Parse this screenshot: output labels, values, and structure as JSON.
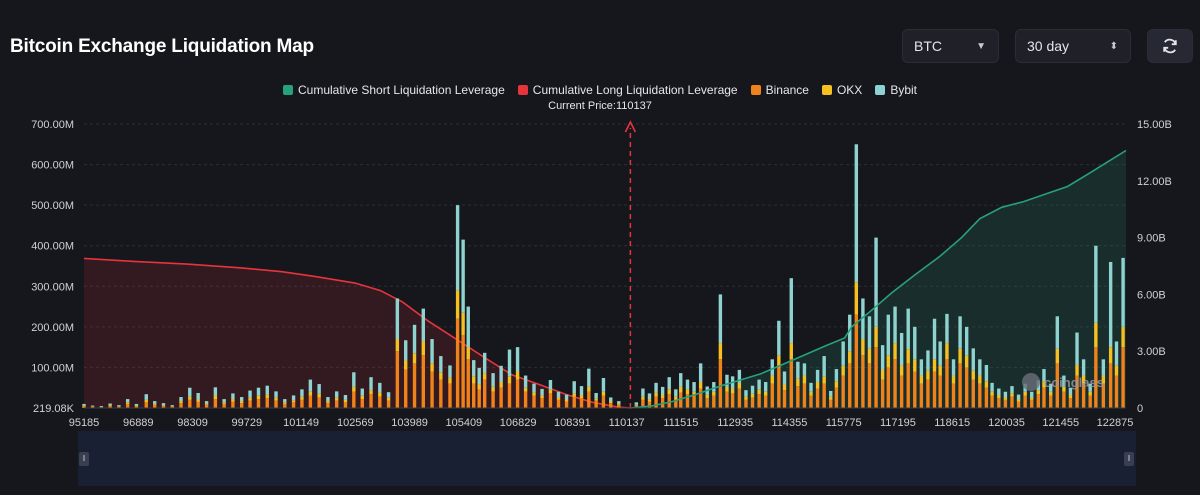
{
  "title": "Bitcoin Exchange Liquidation Map",
  "controls": {
    "symbol": "BTC",
    "period": "30 day",
    "symbol_icon": "chevron-down-icon",
    "period_icon": "up-down-chevron-icon",
    "refresh_icon": "refresh-icon"
  },
  "legend": [
    {
      "label": "Cumulative Short Liquidation Leverage",
      "color": "#26a17b"
    },
    {
      "label": "Cumulative Long Liquidation Leverage",
      "color": "#e5343c"
    },
    {
      "label": "Binance",
      "color": "#f0821a"
    },
    {
      "label": "OKX",
      "color": "#f5c020"
    },
    {
      "label": "Bybit",
      "color": "#8fd3d0"
    }
  ],
  "current_price_text": "Current Price:110137",
  "watermark": "coinglass",
  "chart_data": {
    "type": "bar",
    "current_price": 110137,
    "x_range": [
      95185,
      123700
    ],
    "x_ticks": [
      "95185",
      "96889",
      "98309",
      "99729",
      "101149",
      "102569",
      "103989",
      "105409",
      "106829",
      "108391",
      "110137",
      "111515",
      "112935",
      "114355",
      "115775",
      "117195",
      "118615",
      "120035",
      "121455",
      "122875"
    ],
    "y_left": {
      "ticks": [
        "219.08K",
        "100.00M",
        "200.00M",
        "300.00M",
        "400.00M",
        "500.00M",
        "600.00M",
        "700.00M"
      ],
      "ylim": [
        0,
        700
      ]
    },
    "y_right": {
      "ticks": [
        "0",
        "3.00B",
        "6.00B",
        "9.00B",
        "12.00B",
        "15.00B"
      ],
      "ylim": [
        0,
        15
      ]
    },
    "stacked_series": [
      {
        "name": "Binance",
        "color": "#f0821a"
      },
      {
        "name": "OKX",
        "color": "#f5c020"
      },
      {
        "name": "Bybit",
        "color": "#8fd3d0"
      }
    ],
    "bars": [
      {
        "x": 95185,
        "b": 4,
        "o": 2,
        "y": 4
      },
      {
        "x": 95420,
        "b": 3,
        "o": 1,
        "y": 2
      },
      {
        "x": 95660,
        "b": 2,
        "o": 1,
        "y": 2
      },
      {
        "x": 95900,
        "b": 5,
        "o": 2,
        "y": 4
      },
      {
        "x": 96140,
        "b": 3,
        "o": 1,
        "y": 3
      },
      {
        "x": 96380,
        "b": 10,
        "o": 4,
        "y": 8
      },
      {
        "x": 96620,
        "b": 4,
        "o": 2,
        "y": 4
      },
      {
        "x": 96889,
        "b": 14,
        "o": 6,
        "y": 14
      },
      {
        "x": 97120,
        "b": 8,
        "o": 3,
        "y": 6
      },
      {
        "x": 97360,
        "b": 5,
        "o": 2,
        "y": 5
      },
      {
        "x": 97600,
        "b": 3,
        "o": 1,
        "y": 3
      },
      {
        "x": 97840,
        "b": 12,
        "o": 5,
        "y": 10
      },
      {
        "x": 98080,
        "b": 20,
        "o": 8,
        "y": 22
      },
      {
        "x": 98309,
        "b": 15,
        "o": 6,
        "y": 16
      },
      {
        "x": 98540,
        "b": 8,
        "o": 3,
        "y": 6
      },
      {
        "x": 98780,
        "b": 22,
        "o": 9,
        "y": 20
      },
      {
        "x": 99020,
        "b": 10,
        "o": 4,
        "y": 8
      },
      {
        "x": 99260,
        "b": 16,
        "o": 6,
        "y": 14
      },
      {
        "x": 99500,
        "b": 12,
        "o": 5,
        "y": 10
      },
      {
        "x": 99729,
        "b": 18,
        "o": 7,
        "y": 18
      },
      {
        "x": 99960,
        "b": 22,
        "o": 8,
        "y": 20
      },
      {
        "x": 100200,
        "b": 24,
        "o": 9,
        "y": 22
      },
      {
        "x": 100440,
        "b": 18,
        "o": 7,
        "y": 16
      },
      {
        "x": 100680,
        "b": 10,
        "o": 4,
        "y": 8
      },
      {
        "x": 100920,
        "b": 14,
        "o": 5,
        "y": 12
      },
      {
        "x": 101149,
        "b": 20,
        "o": 8,
        "y": 18
      },
      {
        "x": 101380,
        "b": 30,
        "o": 10,
        "y": 30
      },
      {
        "x": 101620,
        "b": 26,
        "o": 9,
        "y": 24
      },
      {
        "x": 101860,
        "b": 12,
        "o": 5,
        "y": 10
      },
      {
        "x": 102100,
        "b": 18,
        "o": 7,
        "y": 16
      },
      {
        "x": 102340,
        "b": 14,
        "o": 6,
        "y": 12
      },
      {
        "x": 102569,
        "b": 40,
        "o": 12,
        "y": 36
      },
      {
        "x": 102800,
        "b": 22,
        "o": 8,
        "y": 18
      },
      {
        "x": 103040,
        "b": 34,
        "o": 10,
        "y": 32
      },
      {
        "x": 103280,
        "b": 28,
        "o": 10,
        "y": 24
      },
      {
        "x": 103520,
        "b": 18,
        "o": 7,
        "y": 14
      },
      {
        "x": 103760,
        "b": 140,
        "o": 30,
        "y": 100
      },
      {
        "x": 103989,
        "b": 95,
        "o": 22,
        "y": 50
      },
      {
        "x": 104230,
        "b": 110,
        "o": 25,
        "y": 70
      },
      {
        "x": 104470,
        "b": 130,
        "o": 35,
        "y": 80
      },
      {
        "x": 104710,
        "b": 90,
        "o": 20,
        "y": 60
      },
      {
        "x": 104950,
        "b": 70,
        "o": 18,
        "y": 40
      },
      {
        "x": 105200,
        "b": 60,
        "o": 15,
        "y": 30
      },
      {
        "x": 105409,
        "b": 220,
        "o": 70,
        "y": 210
      },
      {
        "x": 105560,
        "b": 180,
        "o": 55,
        "y": 180
      },
      {
        "x": 105700,
        "b": 120,
        "o": 30,
        "y": 100
      },
      {
        "x": 105850,
        "b": 60,
        "o": 18,
        "y": 40
      },
      {
        "x": 106000,
        "b": 45,
        "o": 14,
        "y": 40
      },
      {
        "x": 106150,
        "b": 70,
        "o": 16,
        "y": 50
      },
      {
        "x": 106380,
        "b": 40,
        "o": 12,
        "y": 34
      },
      {
        "x": 106600,
        "b": 50,
        "o": 14,
        "y": 40
      },
      {
        "x": 106829,
        "b": 60,
        "o": 18,
        "y": 66
      },
      {
        "x": 107050,
        "b": 70,
        "o": 20,
        "y": 60
      },
      {
        "x": 107270,
        "b": 40,
        "o": 10,
        "y": 30
      },
      {
        "x": 107500,
        "b": 30,
        "o": 8,
        "y": 22
      },
      {
        "x": 107720,
        "b": 24,
        "o": 7,
        "y": 16
      },
      {
        "x": 107950,
        "b": 36,
        "o": 9,
        "y": 24
      },
      {
        "x": 108170,
        "b": 20,
        "o": 6,
        "y": 14
      },
      {
        "x": 108391,
        "b": 16,
        "o": 5,
        "y": 12
      },
      {
        "x": 108600,
        "b": 28,
        "o": 8,
        "y": 30
      },
      {
        "x": 108800,
        "b": 24,
        "o": 8,
        "y": 22
      },
      {
        "x": 109000,
        "b": 40,
        "o": 12,
        "y": 45
      },
      {
        "x": 109200,
        "b": 18,
        "o": 5,
        "y": 14
      },
      {
        "x": 109400,
        "b": 30,
        "o": 10,
        "y": 34
      },
      {
        "x": 109600,
        "b": 12,
        "o": 4,
        "y": 10
      },
      {
        "x": 109820,
        "b": 8,
        "o": 3,
        "y": 6
      },
      {
        "x": 110300,
        "b": 6,
        "o": 2,
        "y": 6
      },
      {
        "x": 110480,
        "b": 20,
        "o": 8,
        "y": 20
      },
      {
        "x": 110660,
        "b": 16,
        "o": 6,
        "y": 14
      },
      {
        "x": 110840,
        "b": 28,
        "o": 10,
        "y": 24
      },
      {
        "x": 111020,
        "b": 24,
        "o": 8,
        "y": 20
      },
      {
        "x": 111200,
        "b": 34,
        "o": 12,
        "y": 30
      },
      {
        "x": 111380,
        "b": 20,
        "o": 8,
        "y": 18
      },
      {
        "x": 111515,
        "b": 38,
        "o": 14,
        "y": 34
      },
      {
        "x": 111700,
        "b": 34,
        "o": 12,
        "y": 24
      },
      {
        "x": 111880,
        "b": 30,
        "o": 10,
        "y": 24
      },
      {
        "x": 112060,
        "b": 48,
        "o": 16,
        "y": 46
      },
      {
        "x": 112240,
        "b": 24,
        "o": 9,
        "y": 20
      },
      {
        "x": 112420,
        "b": 30,
        "o": 10,
        "y": 24
      },
      {
        "x": 112600,
        "b": 120,
        "o": 40,
        "y": 120
      },
      {
        "x": 112780,
        "b": 40,
        "o": 12,
        "y": 30
      },
      {
        "x": 112935,
        "b": 36,
        "o": 12,
        "y": 30
      },
      {
        "x": 113120,
        "b": 48,
        "o": 14,
        "y": 32
      },
      {
        "x": 113300,
        "b": 20,
        "o": 8,
        "y": 16
      },
      {
        "x": 113480,
        "b": 26,
        "o": 9,
        "y": 20
      },
      {
        "x": 113660,
        "b": 34,
        "o": 12,
        "y": 24
      },
      {
        "x": 113840,
        "b": 30,
        "o": 10,
        "y": 24
      },
      {
        "x": 114020,
        "b": 60,
        "o": 20,
        "y": 40
      },
      {
        "x": 114200,
        "b": 100,
        "o": 30,
        "y": 85
      },
      {
        "x": 114355,
        "b": 44,
        "o": 14,
        "y": 32
      },
      {
        "x": 114540,
        "b": 120,
        "o": 40,
        "y": 160
      },
      {
        "x": 114720,
        "b": 54,
        "o": 18,
        "y": 42
      },
      {
        "x": 114900,
        "b": 60,
        "o": 20,
        "y": 30
      },
      {
        "x": 115080,
        "b": 30,
        "o": 10,
        "y": 22
      },
      {
        "x": 115260,
        "b": 48,
        "o": 16,
        "y": 30
      },
      {
        "x": 115440,
        "b": 60,
        "o": 18,
        "y": 50
      },
      {
        "x": 115620,
        "b": 20,
        "o": 8,
        "y": 14
      },
      {
        "x": 115775,
        "b": 50,
        "o": 16,
        "y": 30
      },
      {
        "x": 115960,
        "b": 80,
        "o": 24,
        "y": 60
      },
      {
        "x": 116140,
        "b": 110,
        "o": 30,
        "y": 90
      },
      {
        "x": 116320,
        "b": 230,
        "o": 80,
        "y": 340
      },
      {
        "x": 116500,
        "b": 130,
        "o": 40,
        "y": 100
      },
      {
        "x": 116680,
        "b": 110,
        "o": 36,
        "y": 80
      },
      {
        "x": 116860,
        "b": 150,
        "o": 50,
        "y": 220
      },
      {
        "x": 117040,
        "b": 70,
        "o": 25,
        "y": 60
      },
      {
        "x": 117195,
        "b": 100,
        "o": 30,
        "y": 100
      },
      {
        "x": 117380,
        "b": 120,
        "o": 40,
        "y": 90
      },
      {
        "x": 117560,
        "b": 80,
        "o": 25,
        "y": 80
      },
      {
        "x": 117740,
        "b": 110,
        "o": 35,
        "y": 100
      },
      {
        "x": 117920,
        "b": 90,
        "o": 30,
        "y": 80
      },
      {
        "x": 118100,
        "b": 60,
        "o": 20,
        "y": 40
      },
      {
        "x": 118280,
        "b": 70,
        "o": 22,
        "y": 50
      },
      {
        "x": 118460,
        "b": 90,
        "o": 30,
        "y": 100
      },
      {
        "x": 118615,
        "b": 80,
        "o": 24,
        "y": 60
      },
      {
        "x": 118800,
        "b": 120,
        "o": 40,
        "y": 72
      },
      {
        "x": 118980,
        "b": 60,
        "o": 20,
        "y": 40
      },
      {
        "x": 119160,
        "b": 110,
        "o": 36,
        "y": 80
      },
      {
        "x": 119340,
        "b": 100,
        "o": 30,
        "y": 70
      },
      {
        "x": 119520,
        "b": 70,
        "o": 22,
        "y": 55
      },
      {
        "x": 119700,
        "b": 60,
        "o": 20,
        "y": 40
      },
      {
        "x": 119880,
        "b": 50,
        "o": 16,
        "y": 40
      },
      {
        "x": 120035,
        "b": 30,
        "o": 10,
        "y": 22
      },
      {
        "x": 120220,
        "b": 24,
        "o": 8,
        "y": 16
      },
      {
        "x": 120400,
        "b": 20,
        "o": 6,
        "y": 14
      },
      {
        "x": 120580,
        "b": 28,
        "o": 8,
        "y": 18
      },
      {
        "x": 120760,
        "b": 16,
        "o": 5,
        "y": 12
      },
      {
        "x": 120940,
        "b": 30,
        "o": 10,
        "y": 20
      },
      {
        "x": 121120,
        "b": 20,
        "o": 6,
        "y": 14
      },
      {
        "x": 121300,
        "b": 34,
        "o": 10,
        "y": 24
      },
      {
        "x": 121455,
        "b": 50,
        "o": 16,
        "y": 30
      },
      {
        "x": 121640,
        "b": 30,
        "o": 10,
        "y": 20
      },
      {
        "x": 121820,
        "b": 110,
        "o": 36,
        "y": 80
      },
      {
        "x": 122000,
        "b": 40,
        "o": 12,
        "y": 28
      },
      {
        "x": 122180,
        "b": 24,
        "o": 8,
        "y": 18
      },
      {
        "x": 122360,
        "b": 80,
        "o": 26,
        "y": 80
      },
      {
        "x": 122540,
        "b": 60,
        "o": 20,
        "y": 40
      },
      {
        "x": 122720,
        "b": 30,
        "o": 10,
        "y": 20
      },
      {
        "x": 122875,
        "b": 150,
        "o": 60,
        "y": 190
      },
      {
        "x": 123080,
        "b": 60,
        "o": 20,
        "y": 40
      },
      {
        "x": 123280,
        "b": 110,
        "o": 40,
        "y": 210
      },
      {
        "x": 123440,
        "b": 80,
        "o": 24,
        "y": 60
      },
      {
        "x": 123620,
        "b": 150,
        "o": 50,
        "y": 170
      }
    ],
    "cumulative_long": {
      "name": "Cumulative Long Liquidation Leverage",
      "color": "#e5343c",
      "points": [
        [
          95185,
          7.9
        ],
        [
          96500,
          7.75
        ],
        [
          98000,
          7.6
        ],
        [
          99500,
          7.4
        ],
        [
          100600,
          7.2
        ],
        [
          101500,
          6.95
        ],
        [
          102600,
          6.6
        ],
        [
          103300,
          6.2
        ],
        [
          103900,
          5.6
        ],
        [
          104600,
          4.6
        ],
        [
          105400,
          3.6
        ],
        [
          106200,
          2.6
        ],
        [
          106900,
          1.75
        ],
        [
          107700,
          1.2
        ],
        [
          108400,
          0.7
        ],
        [
          109100,
          0.3
        ],
        [
          109800,
          0.05
        ],
        [
          110137,
          0
        ]
      ]
    },
    "cumulative_short": {
      "name": "Cumulative Short Liquidation Leverage",
      "color": "#26a17b",
      "points": [
        [
          110137,
          0
        ],
        [
          110700,
          0.1
        ],
        [
          111300,
          0.35
        ],
        [
          111900,
          0.7
        ],
        [
          112500,
          1.1
        ],
        [
          113100,
          1.45
        ],
        [
          113700,
          1.8
        ],
        [
          114300,
          2.3
        ],
        [
          114900,
          2.8
        ],
        [
          115500,
          3.3
        ],
        [
          116000,
          3.7
        ],
        [
          116200,
          4.3
        ],
        [
          116700,
          5.1
        ],
        [
          117300,
          6.1
        ],
        [
          117900,
          7.0
        ],
        [
          118600,
          8.0
        ],
        [
          119200,
          9.0
        ],
        [
          119700,
          10.0
        ],
        [
          120300,
          10.6
        ],
        [
          120900,
          10.9
        ],
        [
          121500,
          11.3
        ],
        [
          122100,
          11.7
        ],
        [
          122700,
          12.4
        ],
        [
          123200,
          13.0
        ],
        [
          123700,
          13.6
        ]
      ]
    }
  }
}
